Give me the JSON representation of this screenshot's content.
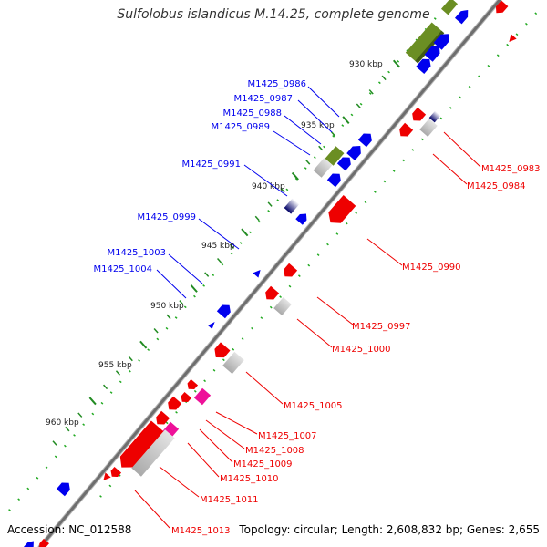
{
  "title": "Sulfolobus islandicus M.14.25, complete genome",
  "footer": {
    "accession": "Accession: NC_012588",
    "summary": "Topology: circular; Length: 2,608,832 bp; Genes: 2,655"
  },
  "scale_labels": [
    "930 kbp",
    "935 kbp",
    "940 kbp",
    "945 kbp",
    "950 kbp",
    "955 kbp",
    "960 kbp"
  ],
  "forward_labels": [
    "M1425_0986",
    "M1425_0987",
    "M1425_0988",
    "M1425_0989",
    "M1425_0991",
    "M1425_0999",
    "M1425_1003",
    "M1425_1004"
  ],
  "reverse_labels": [
    "M1425_0983",
    "M1425_0984",
    "M1425_0990",
    "M1425_0997",
    "M1425_1000",
    "M1425_1005",
    "M1425_1007",
    "M1425_1008",
    "M1425_1009",
    "M1425_1010",
    "M1425_1011",
    "M1425_1013"
  ],
  "colors": {
    "forward": "#0000ee",
    "reverse": "#ee0000",
    "rna": "#6b8e23",
    "pseudo": "#bbbbbb",
    "pink": "#ee1199",
    "backbone": "#888888",
    "ticks": "#228b22"
  }
}
